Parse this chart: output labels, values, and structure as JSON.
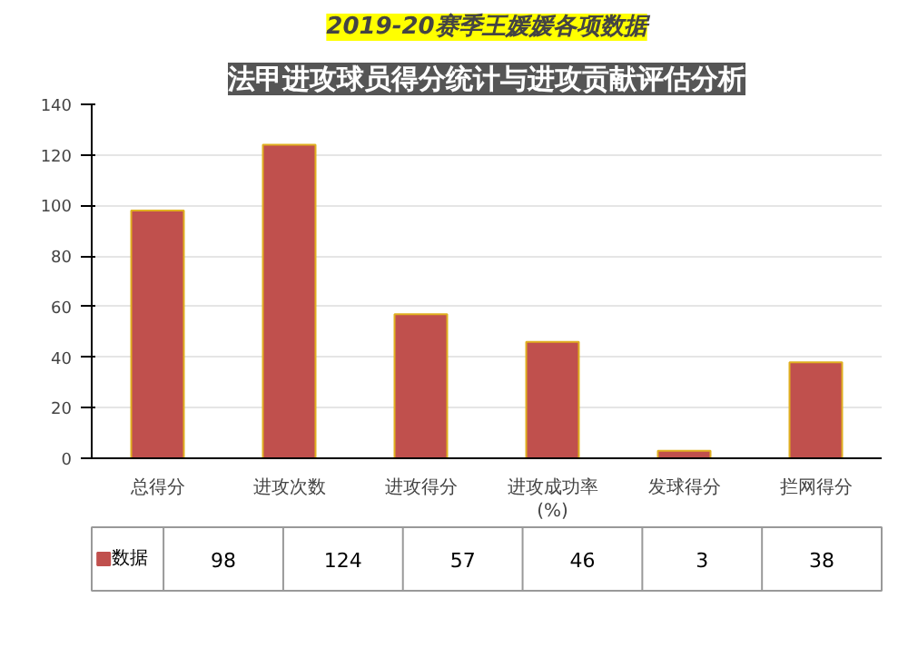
{
  "chart_data": {
    "type": "bar",
    "title": "2019-20赛季王媛媛各项数据",
    "subtitle": "法甲进攻球员得分统计与进攻贡献评估分析",
    "categories": [
      "总得分",
      "进攻次数",
      "进攻得分",
      "进攻成功率\n(%)",
      "发球得分",
      "拦网得分"
    ],
    "series": [
      {
        "name": "数据",
        "color": "#c0504d",
        "values": [
          98,
          124,
          57,
          46,
          3,
          38
        ]
      }
    ],
    "ylim": [
      0,
      140
    ],
    "yticks": [
      0,
      20,
      40,
      60,
      80,
      100,
      120,
      140
    ],
    "grid": "y",
    "data_labels": true,
    "legend": "bottom"
  }
}
